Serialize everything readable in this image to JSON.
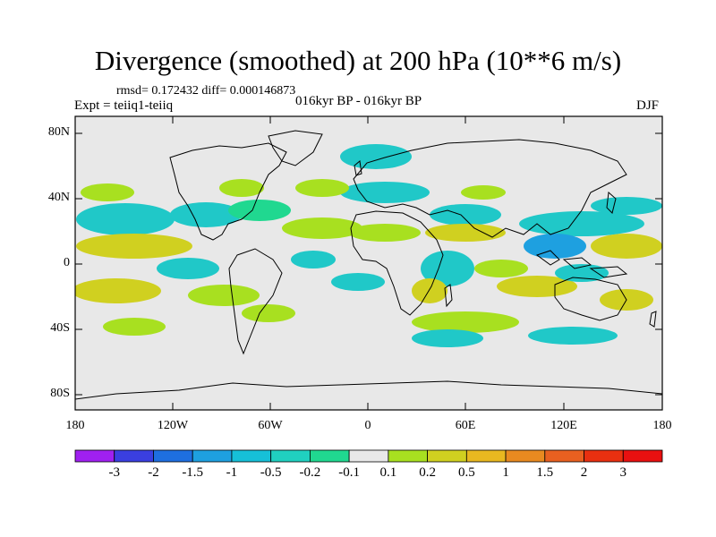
{
  "title": "Divergence (smoothed) at 200 hPa (10**6 m/s)",
  "stats": "rmsd= 0.172432 diff= 0.000146873",
  "experiment": "Expt = teiiq1-teiiq",
  "period": "016kyr BP - 016kyr BP",
  "season": "DJF",
  "lat_ticks": [
    "80N",
    "40N",
    "0",
    "40S",
    "80S"
  ],
  "lon_ticks": [
    "180",
    "120W",
    "60W",
    "0",
    "60E",
    "120E",
    "180"
  ],
  "colorbar": {
    "labels": [
      "-3",
      "-2",
      "-1.5",
      "-1",
      "-0.5",
      "-0.2",
      "-0.1",
      "0.1",
      "0.2",
      "0.5",
      "1",
      "1.5",
      "2",
      "3"
    ],
    "colors": [
      "#a020f0",
      "#3a3fe0",
      "#1e6fe0",
      "#1ea0e0",
      "#16c0d8",
      "#20d0c0",
      "#20d890",
      "#e8e8e8",
      "#a8e020",
      "#d0d020",
      "#e8b820",
      "#e88a20",
      "#e86020",
      "#e83010",
      "#e81010"
    ]
  },
  "field_colors": {
    "background": "#e8e8e8",
    "neg_weak": "#20d890",
    "neg_mid": "#20c8c8",
    "neg_strong": "#1ea0e0",
    "pos_weak": "#a8e020",
    "pos_mid": "#d0d020",
    "pos_strong": "#e8b820"
  }
}
